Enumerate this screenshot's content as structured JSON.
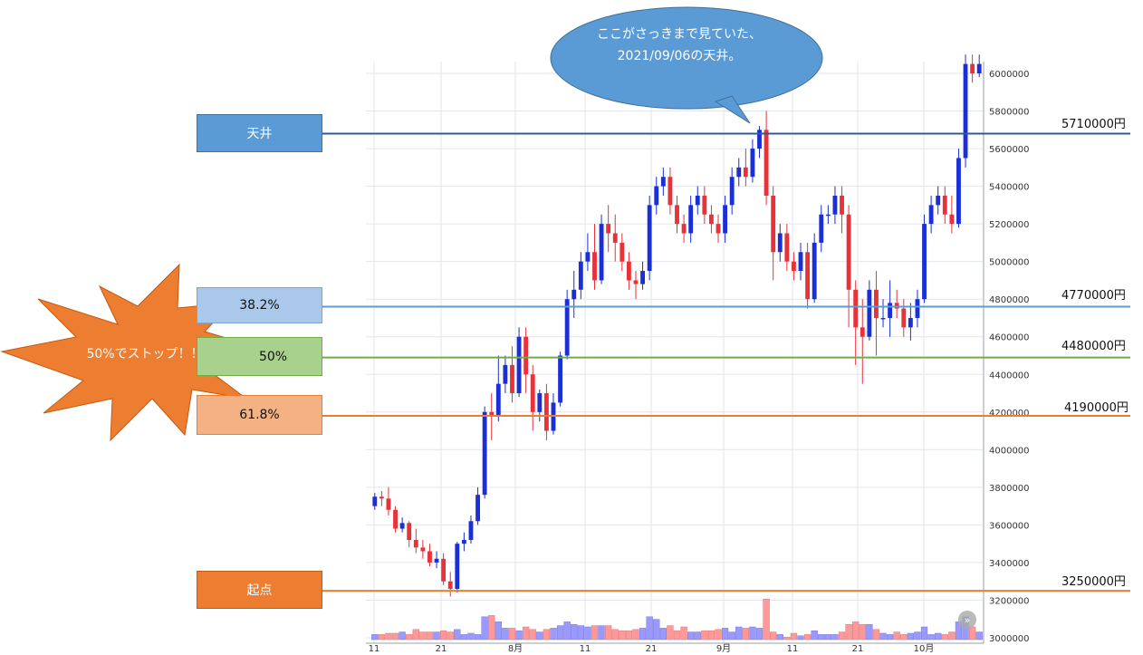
{
  "chart_data": {
    "type": "candlestick",
    "y_ticks": [
      "6000000",
      "5800000",
      "5600000",
      "5400000",
      "5200000",
      "5000000",
      "4800000",
      "4600000",
      "4400000",
      "4200000",
      "4000000",
      "3800000",
      "3600000",
      "3400000",
      "3200000",
      "3000000"
    ],
    "x_ticks": [
      "11",
      "21",
      "8月",
      "11",
      "21",
      "9月",
      "11",
      "21",
      "10月"
    ],
    "ylim": [
      3000000,
      6100000
    ],
    "candles": [
      [
        3700000,
        3750000,
        3680000,
        3770000
      ],
      [
        3750000,
        3740000,
        3700000,
        3780000
      ],
      [
        3740000,
        3680000,
        3650000,
        3800000
      ],
      [
        3680000,
        3580000,
        3560000,
        3700000
      ],
      [
        3580000,
        3610000,
        3560000,
        3640000
      ],
      [
        3610000,
        3520000,
        3480000,
        3620000
      ],
      [
        3520000,
        3480000,
        3450000,
        3580000
      ],
      [
        3480000,
        3460000,
        3420000,
        3520000
      ],
      [
        3460000,
        3400000,
        3380000,
        3500000
      ],
      [
        3400000,
        3420000,
        3370000,
        3460000
      ],
      [
        3420000,
        3300000,
        3280000,
        3450000
      ],
      [
        3300000,
        3260000,
        3220000,
        3350000
      ],
      [
        3260000,
        3500000,
        3240000,
        3510000
      ],
      [
        3500000,
        3520000,
        3460000,
        3560000
      ],
      [
        3520000,
        3620000,
        3500000,
        3650000
      ],
      [
        3620000,
        3760000,
        3600000,
        3800000
      ],
      [
        3760000,
        4200000,
        3740000,
        4230000
      ],
      [
        4200000,
        4180000,
        4050000,
        4300000
      ],
      [
        4180000,
        4350000,
        4150000,
        4500000
      ],
      [
        4350000,
        4450000,
        4300000,
        4500000
      ],
      [
        4450000,
        4300000,
        4250000,
        4550000
      ],
      [
        4300000,
        4600000,
        4280000,
        4650000
      ],
      [
        4600000,
        4400000,
        4300000,
        4650000
      ],
      [
        4400000,
        4200000,
        4100000,
        4450000
      ],
      [
        4200000,
        4300000,
        4150000,
        4320000
      ],
      [
        4300000,
        4100000,
        4050000,
        4350000
      ],
      [
        4100000,
        4250000,
        4080000,
        4300000
      ],
      [
        4250000,
        4500000,
        4230000,
        4520000
      ],
      [
        4500000,
        4800000,
        4480000,
        4850000
      ],
      [
        4800000,
        4850000,
        4700000,
        4950000
      ],
      [
        4850000,
        5000000,
        4800000,
        5050000
      ],
      [
        5000000,
        5050000,
        4950000,
        5150000
      ],
      [
        5050000,
        4900000,
        4850000,
        5200000
      ],
      [
        4900000,
        5200000,
        4880000,
        5250000
      ],
      [
        5200000,
        5150000,
        5050000,
        5300000
      ],
      [
        5150000,
        5100000,
        5000000,
        5250000
      ],
      [
        5100000,
        5000000,
        4950000,
        5150000
      ],
      [
        5000000,
        4900000,
        4850000,
        5050000
      ],
      [
        4900000,
        4880000,
        4800000,
        4950000
      ],
      [
        4880000,
        4950000,
        4850000,
        5000000
      ],
      [
        4950000,
        5300000,
        4900000,
        5350000
      ],
      [
        5300000,
        5400000,
        5250000,
        5450000
      ],
      [
        5400000,
        5450000,
        5350000,
        5500000
      ],
      [
        5450000,
        5300000,
        5250000,
        5500000
      ],
      [
        5300000,
        5200000,
        5150000,
        5350000
      ],
      [
        5200000,
        5150000,
        5100000,
        5250000
      ],
      [
        5150000,
        5300000,
        5100000,
        5350000
      ],
      [
        5300000,
        5350000,
        5250000,
        5400000
      ],
      [
        5350000,
        5250000,
        5200000,
        5400000
      ],
      [
        5250000,
        5200000,
        5150000,
        5300000
      ],
      [
        5200000,
        5150000,
        5100000,
        5250000
      ],
      [
        5150000,
        5300000,
        5100000,
        5350000
      ],
      [
        5300000,
        5450000,
        5250000,
        5500000
      ],
      [
        5450000,
        5500000,
        5400000,
        5550000
      ],
      [
        5500000,
        5450000,
        5400000,
        5600000
      ],
      [
        5450000,
        5600000,
        5420000,
        5650000
      ],
      [
        5600000,
        5700000,
        5550000,
        5720000
      ],
      [
        5700000,
        5350000,
        5300000,
        5800000
      ],
      [
        5350000,
        5050000,
        4900000,
        5400000
      ],
      [
        5050000,
        5150000,
        5000000,
        5200000
      ],
      [
        5150000,
        5000000,
        4950000,
        5200000
      ],
      [
        5000000,
        4950000,
        4900000,
        5050000
      ],
      [
        4950000,
        5050000,
        4900000,
        5100000
      ],
      [
        5050000,
        4800000,
        4750000,
        5100000
      ],
      [
        4800000,
        5100000,
        4780000,
        5150000
      ],
      [
        5100000,
        5250000,
        5050000,
        5300000
      ],
      [
        5250000,
        5250000,
        5200000,
        5300000
      ],
      [
        5250000,
        5350000,
        5200000,
        5400000
      ],
      [
        5350000,
        5250000,
        5150000,
        5400000
      ],
      [
        5250000,
        4850000,
        4650000,
        5300000
      ],
      [
        4850000,
        4650000,
        4450000,
        4900000
      ],
      [
        4650000,
        4600000,
        4350000,
        4800000
      ],
      [
        4600000,
        4850000,
        4580000,
        4900000
      ],
      [
        4850000,
        4700000,
        4500000,
        4950000
      ],
      [
        4700000,
        4700000,
        4650000,
        4800000
      ],
      [
        4700000,
        4780000,
        4600000,
        4900000
      ],
      [
        4780000,
        4750000,
        4700000,
        4850000
      ],
      [
        4750000,
        4650000,
        4600000,
        4800000
      ],
      [
        4650000,
        4700000,
        4580000,
        4780000
      ],
      [
        4700000,
        4800000,
        4650000,
        4850000
      ],
      [
        4800000,
        5200000,
        4780000,
        5250000
      ],
      [
        5200000,
        5300000,
        5150000,
        5350000
      ],
      [
        5300000,
        5350000,
        5250000,
        5400000
      ],
      [
        5350000,
        5250000,
        5200000,
        5400000
      ],
      [
        5250000,
        5200000,
        5150000,
        5350000
      ],
      [
        5200000,
        5550000,
        5180000,
        5600000
      ],
      [
        5550000,
        6050000,
        5500000,
        6100000
      ],
      [
        6050000,
        6000000,
        5950000,
        6100000
      ],
      [
        6000000,
        6050000,
        5980000,
        6100000
      ]
    ],
    "volumes": [
      0.2,
      0.2,
      0.25,
      0.25,
      0.3,
      0.2,
      0.4,
      0.3,
      0.3,
      0.3,
      0.35,
      0.3,
      0.4,
      0.2,
      0.25,
      0.2,
      0.9,
      0.95,
      0.7,
      0.45,
      0.45,
      0.35,
      0.5,
      0.4,
      0.3,
      0.4,
      0.45,
      0.55,
      0.7,
      0.6,
      0.55,
      0.5,
      0.55,
      0.55,
      0.55,
      0.4,
      0.35,
      0.35,
      0.4,
      0.45,
      0.9,
      0.8,
      0.45,
      0.55,
      0.35,
      0.5,
      0.3,
      0.3,
      0.35,
      0.35,
      0.4,
      0.45,
      0.3,
      0.5,
      0.45,
      0.5,
      0.45,
      1.6,
      0.3,
      0.2,
      0.1,
      0.25,
      0.15,
      0.2,
      0.35,
      0.2,
      0.2,
      0.2,
      0.3,
      0.6,
      0.7,
      0.6,
      0.6,
      0.4,
      0.25,
      0.2,
      0.3,
      0.2,
      0.25,
      0.3,
      0.5,
      0.2,
      0.25,
      0.2,
      0.3,
      0.7,
      0.9,
      0.5,
      0.3
    ],
    "levels": [
      {
        "label": "天井",
        "price_label": "5710000円",
        "price": 5680000,
        "line_color": "#2e5b98",
        "box_fill": "#5b9bd5",
        "box_text": "#ffffff"
      },
      {
        "label": "38.2%",
        "price_label": "4770000円",
        "price": 4760000,
        "line_color": "#5b9bd5",
        "box_fill": "#a9c8ea",
        "box_text": "#111111"
      },
      {
        "label": "50%",
        "price_label": "4480000円",
        "price": 4490000,
        "line_color": "#70ad47",
        "box_fill": "#a9d18e",
        "box_text": "#111111"
      },
      {
        "label": "61.8%",
        "price_label": "4190000円",
        "price": 4180000,
        "line_color": "#ed7d31",
        "box_fill": "#f4b183",
        "box_text": "#111111"
      },
      {
        "label": "起点",
        "price_label": "3250000円",
        "price": 3250000,
        "line_color": "#ed7d31",
        "box_fill": "#ed7d31",
        "box_text": "#ffffff"
      }
    ],
    "callout": "ここがさっきまで見ていた、2021/09/06の天井。",
    "star": "50%でストップ！！",
    "colors": {
      "up": "#1a2fd6",
      "down": "#e8323a",
      "vol_up": "#9999ff",
      "vol_down": "#ff9999",
      "grid": "#e3e6ee",
      "bubble": "#5b9bd5",
      "star": "#ed7d31"
    }
  }
}
